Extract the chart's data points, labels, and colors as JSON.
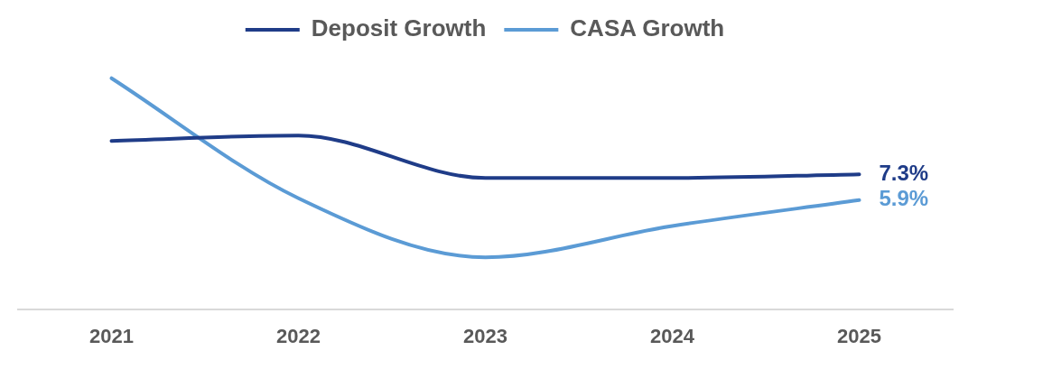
{
  "chart_data": {
    "type": "line",
    "categories": [
      "2021",
      "2022",
      "2023",
      "2024",
      "2025"
    ],
    "series": [
      {
        "name": "Deposit Growth",
        "color": "#1f3c88",
        "values": [
          9.1,
          9.4,
          7.1,
          7.1,
          7.3
        ],
        "value_labels": [
          null,
          null,
          null,
          null,
          "7.3%"
        ]
      },
      {
        "name": "CASA Growth",
        "color": "#5b9bd5",
        "values": [
          12.5,
          6.0,
          2.8,
          4.5,
          5.9
        ],
        "value_labels": [
          null,
          null,
          null,
          null,
          "5.9%"
        ]
      }
    ],
    "tick_labels": "x",
    "grid": false,
    "legend": "top",
    "marker": "none"
  }
}
